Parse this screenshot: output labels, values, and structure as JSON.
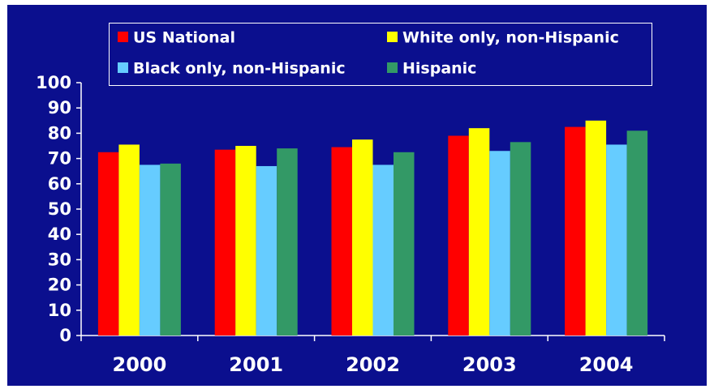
{
  "chart_data": {
    "type": "bar",
    "categories": [
      "2000",
      "2001",
      "2002",
      "2003",
      "2004"
    ],
    "series": [
      {
        "name": "US National",
        "color": "#ff0000",
        "values": [
          72.5,
          73.5,
          74.5,
          79,
          82.5
        ]
      },
      {
        "name": "White only, non-Hispanic",
        "color": "#ffff00",
        "values": [
          75.5,
          75,
          77.5,
          82,
          85
        ]
      },
      {
        "name": "Black only, non-Hispanic",
        "color": "#66ccff",
        "values": [
          67.5,
          67,
          67.5,
          73,
          75.5
        ]
      },
      {
        "name": "Hispanic",
        "color": "#339966",
        "values": [
          68,
          74,
          72.5,
          76.5,
          81
        ]
      }
    ],
    "ylim": [
      0,
      100
    ],
    "yticks": [
      0,
      10,
      20,
      30,
      40,
      50,
      60,
      70,
      80,
      90,
      100
    ],
    "grid": false,
    "legend": "top",
    "title": "",
    "xlabel": "",
    "ylabel": ""
  },
  "colors": {
    "background": "#0b0f8e",
    "text": "#ffffff"
  }
}
